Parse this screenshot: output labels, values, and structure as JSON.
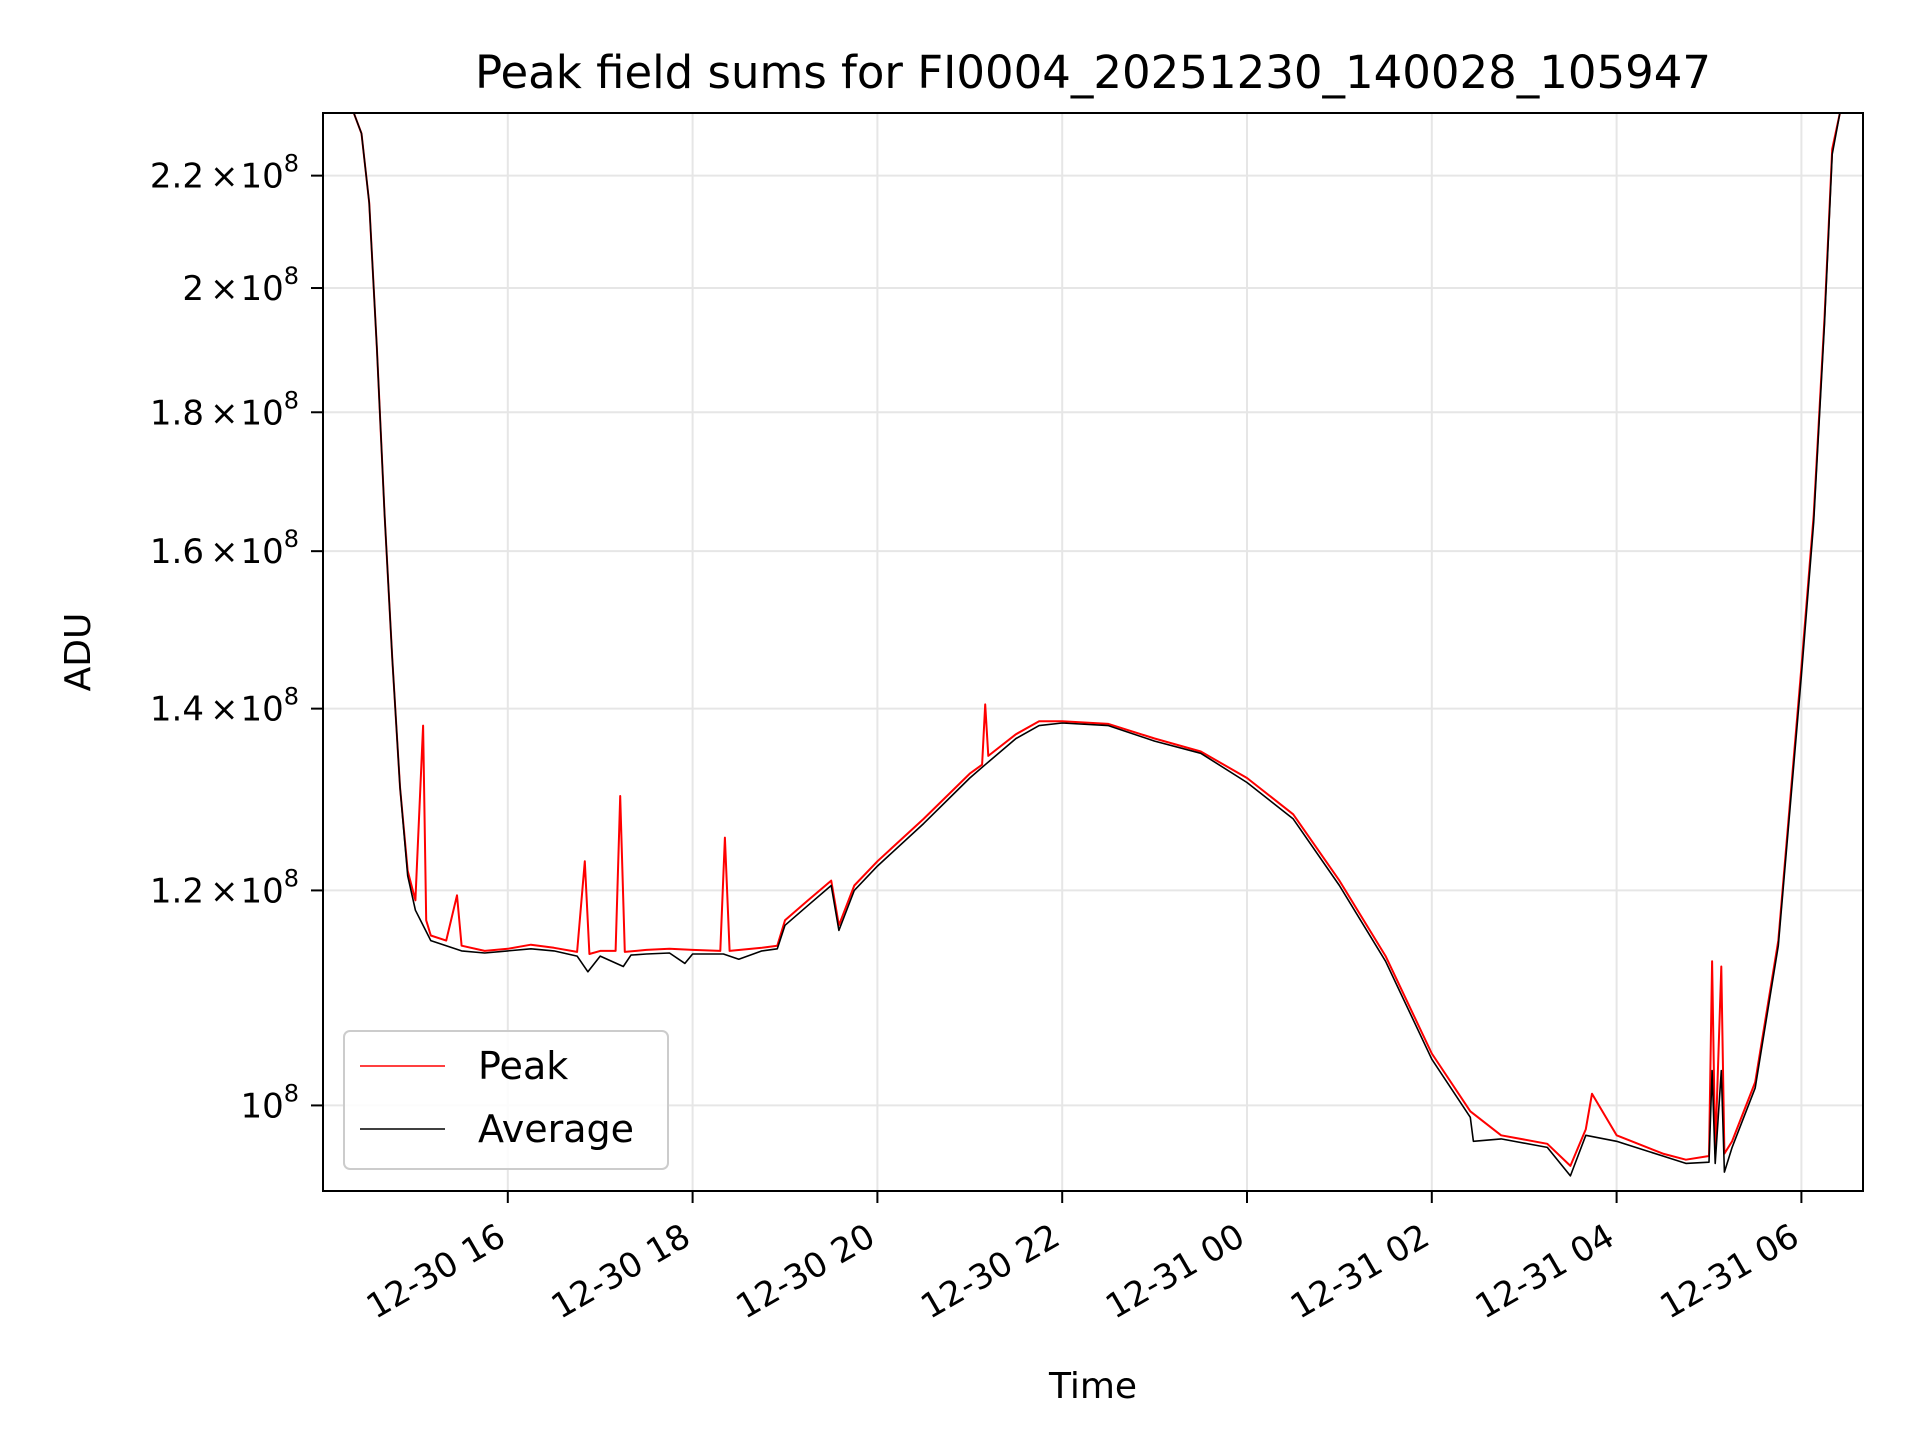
{
  "chart_data": {
    "type": "line",
    "title": "Peak field sums for FI0004_20251230_140028_105947",
    "xlabel": "Time",
    "ylabel": "ADU",
    "y_scale": "log",
    "grid": true,
    "legend_position": "lower-left",
    "xlim": [
      "2025-12-30 14:00",
      "2025-12-31 06:40"
    ],
    "ylim": [
      93000000,
      232000000
    ],
    "x_tick_labels": [
      "12-30 16",
      "12-30 18",
      "12-30 20",
      "12-30 22",
      "12-31 00",
      "12-31 02",
      "12-31 04",
      "12-31 06"
    ],
    "x_tick_values": [
      "2025-12-30 16:00",
      "2025-12-30 18:00",
      "2025-12-30 20:00",
      "2025-12-30 22:00",
      "2025-12-31 00:00",
      "2025-12-31 02:00",
      "2025-12-31 04:00",
      "2025-12-31 06:00"
    ],
    "y_ticks": [
      {
        "value": 100000000,
        "mantissa": "",
        "exponent": "8"
      },
      {
        "value": 120000000,
        "mantissa": "1.2",
        "exponent": "8"
      },
      {
        "value": 140000000,
        "mantissa": "1.4",
        "exponent": "8"
      },
      {
        "value": 160000000,
        "mantissa": "1.6",
        "exponent": "8"
      },
      {
        "value": 180000000,
        "mantissa": "1.8",
        "exponent": "8"
      },
      {
        "value": 200000000,
        "mantissa": "2",
        "exponent": "8"
      },
      {
        "value": 220000000,
        "mantissa": "2.2",
        "exponent": "8"
      }
    ],
    "series": [
      {
        "name": "Peak",
        "color": "#ff0000",
        "points": [
          [
            "2025-12-30 14:20",
            232000000
          ],
          [
            "2025-12-30 14:25",
            228000000
          ],
          [
            "2025-12-30 14:30",
            215000000
          ],
          [
            "2025-12-30 14:35",
            190000000
          ],
          [
            "2025-12-30 14:40",
            165000000
          ],
          [
            "2025-12-30 14:45",
            146000000
          ],
          [
            "2025-12-30 14:50",
            131000000
          ],
          [
            "2025-12-30 14:55",
            122000000
          ],
          [
            "2025-12-30 15:00",
            119000000
          ],
          [
            "2025-12-30 15:05",
            138000000
          ],
          [
            "2025-12-30 15:07",
            117000000
          ],
          [
            "2025-12-30 15:10",
            115500000
          ],
          [
            "2025-12-30 15:20",
            115000000
          ],
          [
            "2025-12-30 15:27",
            119500000
          ],
          [
            "2025-12-30 15:30",
            114500000
          ],
          [
            "2025-12-30 15:45",
            114000000
          ],
          [
            "2025-12-30 16:00",
            114200000
          ],
          [
            "2025-12-30 16:15",
            114600000
          ],
          [
            "2025-12-30 16:30",
            114300000
          ],
          [
            "2025-12-30 16:45",
            113900000
          ],
          [
            "2025-12-30 16:50",
            123000000
          ],
          [
            "2025-12-30 16:53",
            113700000
          ],
          [
            "2025-12-30 17:00",
            114000000
          ],
          [
            "2025-12-30 17:10",
            114000000
          ],
          [
            "2025-12-30 17:13",
            130000000
          ],
          [
            "2025-12-30 17:16",
            113900000
          ],
          [
            "2025-12-30 17:30",
            114100000
          ],
          [
            "2025-12-30 17:45",
            114200000
          ],
          [
            "2025-12-30 18:00",
            114100000
          ],
          [
            "2025-12-30 18:18",
            114000000
          ],
          [
            "2025-12-30 18:21",
            125500000
          ],
          [
            "2025-12-30 18:24",
            114000000
          ],
          [
            "2025-12-30 18:45",
            114300000
          ],
          [
            "2025-12-30 18:55",
            114500000
          ],
          [
            "2025-12-30 19:00",
            117000000
          ],
          [
            "2025-12-30 19:15",
            119000000
          ],
          [
            "2025-12-30 19:30",
            121000000
          ],
          [
            "2025-12-30 19:35",
            116500000
          ],
          [
            "2025-12-30 19:45",
            120500000
          ],
          [
            "2025-12-30 20:00",
            123000000
          ],
          [
            "2025-12-30 20:30",
            127500000
          ],
          [
            "2025-12-30 21:00",
            132500000
          ],
          [
            "2025-12-30 21:08",
            133500000
          ],
          [
            "2025-12-30 21:10",
            140500000
          ],
          [
            "2025-12-30 21:12",
            134500000
          ],
          [
            "2025-12-30 21:30",
            137000000
          ],
          [
            "2025-12-30 21:45",
            138500000
          ],
          [
            "2025-12-30 22:00",
            138500000
          ],
          [
            "2025-12-30 22:30",
            138200000
          ],
          [
            "2025-12-30 23:00",
            136500000
          ],
          [
            "2025-12-30 23:30",
            135000000
          ],
          [
            "2025-12-31 00:00",
            132000000
          ],
          [
            "2025-12-31 00:30",
            128000000
          ],
          [
            "2025-12-31 01:00",
            121000000
          ],
          [
            "2025-12-31 01:30",
            113500000
          ],
          [
            "2025-12-31 02:00",
            104500000
          ],
          [
            "2025-12-31 02:25",
            99500000
          ],
          [
            "2025-12-31 02:45",
            97500000
          ],
          [
            "2025-12-31 03:15",
            96800000
          ],
          [
            "2025-12-31 03:30",
            95000000
          ],
          [
            "2025-12-31 03:40",
            98000000
          ],
          [
            "2025-12-31 03:44",
            101000000
          ],
          [
            "2025-12-31 04:00",
            97500000
          ],
          [
            "2025-12-31 04:30",
            96000000
          ],
          [
            "2025-12-31 04:45",
            95500000
          ],
          [
            "2025-12-31 05:00",
            95800000
          ],
          [
            "2025-12-31 05:02",
            113000000
          ],
          [
            "2025-12-31 05:04",
            96000000
          ],
          [
            "2025-12-31 05:08",
            112500000
          ],
          [
            "2025-12-31 05:10",
            96000000
          ],
          [
            "2025-12-31 05:15",
            97000000
          ],
          [
            "2025-12-31 05:30",
            102000000
          ],
          [
            "2025-12-31 05:45",
            115000000
          ],
          [
            "2025-12-31 06:00",
            145000000
          ],
          [
            "2025-12-31 06:08",
            165000000
          ],
          [
            "2025-12-31 06:15",
            195000000
          ],
          [
            "2025-12-31 06:20",
            225000000
          ],
          [
            "2025-12-31 06:25",
            232000000
          ]
        ]
      },
      {
        "name": "Average",
        "color": "#000000",
        "points": [
          [
            "2025-12-30 14:20",
            232000000
          ],
          [
            "2025-12-30 14:25",
            228000000
          ],
          [
            "2025-12-30 14:30",
            215000000
          ],
          [
            "2025-12-30 14:35",
            190000000
          ],
          [
            "2025-12-30 14:40",
            165000000
          ],
          [
            "2025-12-30 14:45",
            146000000
          ],
          [
            "2025-12-30 14:50",
            131000000
          ],
          [
            "2025-12-30 14:55",
            121500000
          ],
          [
            "2025-12-30 15:00",
            118000000
          ],
          [
            "2025-12-30 15:10",
            115000000
          ],
          [
            "2025-12-30 15:20",
            114500000
          ],
          [
            "2025-12-30 15:30",
            114000000
          ],
          [
            "2025-12-30 15:45",
            113800000
          ],
          [
            "2025-12-30 16:00",
            114000000
          ],
          [
            "2025-12-30 16:15",
            114200000
          ],
          [
            "2025-12-30 16:30",
            114000000
          ],
          [
            "2025-12-30 16:45",
            113500000
          ],
          [
            "2025-12-30 16:52",
            112000000
          ],
          [
            "2025-12-30 17:00",
            113500000
          ],
          [
            "2025-12-30 17:15",
            112500000
          ],
          [
            "2025-12-30 17:20",
            113600000
          ],
          [
            "2025-12-30 17:30",
            113700000
          ],
          [
            "2025-12-30 17:45",
            113800000
          ],
          [
            "2025-12-30 17:55",
            112800000
          ],
          [
            "2025-12-30 18:00",
            113700000
          ],
          [
            "2025-12-30 18:20",
            113700000
          ],
          [
            "2025-12-30 18:30",
            113200000
          ],
          [
            "2025-12-30 18:45",
            114000000
          ],
          [
            "2025-12-30 18:55",
            114200000
          ],
          [
            "2025-12-30 19:00",
            116500000
          ],
          [
            "2025-12-30 19:15",
            118500000
          ],
          [
            "2025-12-30 19:30",
            120500000
          ],
          [
            "2025-12-30 19:35",
            116000000
          ],
          [
            "2025-12-30 19:45",
            120000000
          ],
          [
            "2025-12-30 20:00",
            122500000
          ],
          [
            "2025-12-30 20:30",
            127000000
          ],
          [
            "2025-12-30 21:00",
            132000000
          ],
          [
            "2025-12-30 21:10",
            133500000
          ],
          [
            "2025-12-30 21:30",
            136500000
          ],
          [
            "2025-12-30 21:45",
            138000000
          ],
          [
            "2025-12-30 22:00",
            138300000
          ],
          [
            "2025-12-30 22:30",
            138000000
          ],
          [
            "2025-12-30 23:00",
            136200000
          ],
          [
            "2025-12-30 23:30",
            134800000
          ],
          [
            "2025-12-31 00:00",
            131500000
          ],
          [
            "2025-12-31 00:30",
            127500000
          ],
          [
            "2025-12-31 01:00",
            120500000
          ],
          [
            "2025-12-31 01:30",
            113000000
          ],
          [
            "2025-12-31 02:00",
            104000000
          ],
          [
            "2025-12-31 02:25",
            99000000
          ],
          [
            "2025-12-31 02:27",
            97000000
          ],
          [
            "2025-12-31 02:45",
            97200000
          ],
          [
            "2025-12-31 03:15",
            96500000
          ],
          [
            "2025-12-31 03:30",
            94200000
          ],
          [
            "2025-12-31 03:40",
            97500000
          ],
          [
            "2025-12-31 04:00",
            97000000
          ],
          [
            "2025-12-31 04:30",
            95800000
          ],
          [
            "2025-12-31 04:45",
            95200000
          ],
          [
            "2025-12-31 05:00",
            95300000
          ],
          [
            "2025-12-31 05:02",
            103000000
          ],
          [
            "2025-12-31 05:04",
            95200000
          ],
          [
            "2025-12-31 05:08",
            103000000
          ],
          [
            "2025-12-31 05:10",
            94500000
          ],
          [
            "2025-12-31 05:15",
            96500000
          ],
          [
            "2025-12-31 05:30",
            101500000
          ],
          [
            "2025-12-31 05:45",
            114500000
          ],
          [
            "2025-12-31 06:00",
            144000000
          ],
          [
            "2025-12-31 06:08",
            164000000
          ],
          [
            "2025-12-31 06:15",
            194000000
          ],
          [
            "2025-12-31 06:20",
            224000000
          ],
          [
            "2025-12-31 06:25",
            232000000
          ]
        ]
      }
    ]
  }
}
